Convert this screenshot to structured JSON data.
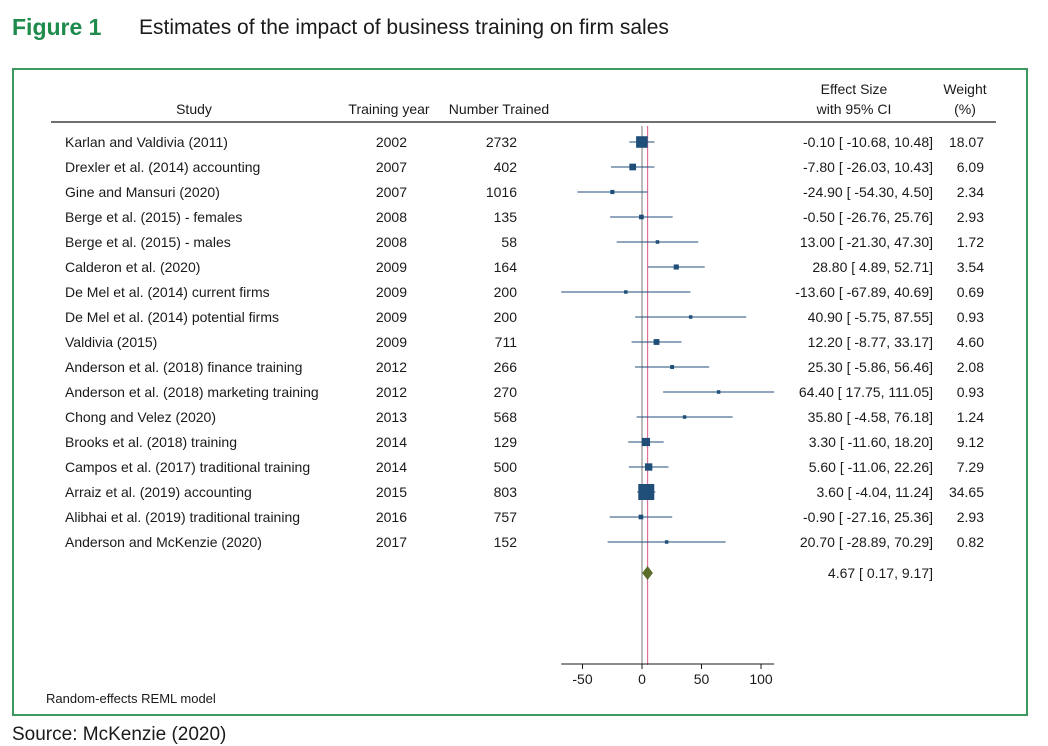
{
  "figure_label": "Figure 1",
  "figure_title": "Estimates of the impact of business training on firm sales",
  "source": "Source: McKenzie (2020)",
  "colors": {
    "accent": "#1e8a4c",
    "border": "#3d9b62",
    "marker": "#1f4e79",
    "overall": "#5a6e2a",
    "refline": "#e0709a"
  },
  "chart_data": {
    "type": "forest",
    "columns": {
      "study": "Study",
      "year": "Training year",
      "trained": "Number Trained",
      "effect_line1": "Effect Size",
      "effect_line2": "with 95% CI",
      "weight_line1": "Weight",
      "weight_line2": "(%)"
    },
    "studies": [
      {
        "study": "Karlan and Valdivia (2011)",
        "year": "2002",
        "trained": "2732",
        "effect": -0.1,
        "lower": -10.68,
        "upper": 10.48,
        "weight": 18.07,
        "ci_text": "-0.10 [ -10.68,   10.48]",
        "weight_text": "18.07"
      },
      {
        "study": "Drexler et al. (2014) accounting",
        "year": "2007",
        "trained": "402",
        "effect": -7.8,
        "lower": -26.03,
        "upper": 10.43,
        "weight": 6.09,
        "ci_text": "-7.80 [ -26.03,   10.43]",
        "weight_text": "6.09"
      },
      {
        "study": "Gine and Mansuri (2020)",
        "year": "2007",
        "trained": "1016",
        "effect": -24.9,
        "lower": -54.3,
        "upper": 4.5,
        "weight": 2.34,
        "ci_text": "-24.90 [ -54.30,     4.50]",
        "weight_text": "2.34"
      },
      {
        "study": "Berge et al. (2015) - females",
        "year": "2008",
        "trained": "135",
        "effect": -0.5,
        "lower": -26.76,
        "upper": 25.76,
        "weight": 2.93,
        "ci_text": "-0.50 [ -26.76,   25.76]",
        "weight_text": "2.93"
      },
      {
        "study": "Berge et al. (2015) - males",
        "year": "2008",
        "trained": "58",
        "effect": 13.0,
        "lower": -21.3,
        "upper": 47.3,
        "weight": 1.72,
        "ci_text": "13.00 [ -21.30,   47.30]",
        "weight_text": "1.72"
      },
      {
        "study": "Calderon et al. (2020)",
        "year": "2009",
        "trained": "164",
        "effect": 28.8,
        "lower": 4.89,
        "upper": 52.71,
        "weight": 3.54,
        "ci_text": "28.80 [     4.89,   52.71]",
        "weight_text": "3.54"
      },
      {
        "study": "De Mel et al. (2014) current firms",
        "year": "2009",
        "trained": "200",
        "effect": -13.6,
        "lower": -67.89,
        "upper": 40.69,
        "weight": 0.69,
        "ci_text": "-13.60 [ -67.89,   40.69]",
        "weight_text": "0.69"
      },
      {
        "study": "De Mel et al. (2014) potential firms",
        "year": "2009",
        "trained": "200",
        "effect": 40.9,
        "lower": -5.75,
        "upper": 87.55,
        "weight": 0.93,
        "ci_text": "40.90 [   -5.75,   87.55]",
        "weight_text": "0.93"
      },
      {
        "study": "Valdivia (2015)",
        "year": "2009",
        "trained": "711",
        "effect": 12.2,
        "lower": -8.77,
        "upper": 33.17,
        "weight": 4.6,
        "ci_text": "12.20 [   -8.77,   33.17]",
        "weight_text": "4.60"
      },
      {
        "study": "Anderson et al. (2018) finance training",
        "year": "2012",
        "trained": "266",
        "effect": 25.3,
        "lower": -5.86,
        "upper": 56.46,
        "weight": 2.08,
        "ci_text": "25.30 [   -5.86,   56.46]",
        "weight_text": "2.08"
      },
      {
        "study": "Anderson et al. (2018) marketing training",
        "year": "2012",
        "trained": "270",
        "effect": 64.4,
        "lower": 17.75,
        "upper": 111.05,
        "weight": 0.93,
        "ci_text": "64.40 [   17.75, 111.05]",
        "weight_text": "0.93"
      },
      {
        "study": "Chong and Velez (2020)",
        "year": "2013",
        "trained": "568",
        "effect": 35.8,
        "lower": -4.58,
        "upper": 76.18,
        "weight": 1.24,
        "ci_text": "35.80 [   -4.58,   76.18]",
        "weight_text": "1.24"
      },
      {
        "study": "Brooks et al. (2018) training",
        "year": "2014",
        "trained": "129",
        "effect": 3.3,
        "lower": -11.6,
        "upper": 18.2,
        "weight": 9.12,
        "ci_text": "3.30 [ -11.60,   18.20]",
        "weight_text": "9.12"
      },
      {
        "study": "Campos et al. (2017) traditional training",
        "year": "2014",
        "trained": "500",
        "effect": 5.6,
        "lower": -11.06,
        "upper": 22.26,
        "weight": 7.29,
        "ci_text": "5.60 [ -11.06,   22.26]",
        "weight_text": "7.29"
      },
      {
        "study": "Arraiz et al. (2019) accounting",
        "year": "2015",
        "trained": "803",
        "effect": 3.6,
        "lower": -4.04,
        "upper": 11.24,
        "weight": 34.65,
        "ci_text": "3.60 [   -4.04,   11.24]",
        "weight_text": "34.65"
      },
      {
        "study": "Alibhai et al. (2019) traditional training",
        "year": "2016",
        "trained": "757",
        "effect": -0.9,
        "lower": -27.16,
        "upper": 25.36,
        "weight": 2.93,
        "ci_text": "-0.90 [ -27.16,   25.36]",
        "weight_text": "2.93"
      },
      {
        "study": "Anderson and McKenzie (2020)",
        "year": "2017",
        "trained": "152",
        "effect": 20.7,
        "lower": -28.89,
        "upper": 70.29,
        "weight": 0.82,
        "ci_text": "20.70 [ -28.89,   70.29]",
        "weight_text": "0.82"
      }
    ],
    "overall": {
      "effect": 4.67,
      "lower": 0.17,
      "upper": 9.17,
      "ci_text": "4.67 [     0.17,     9.17]"
    },
    "x_ticks": [
      -50,
      0,
      50,
      100
    ],
    "x_tick_labels": [
      "-50",
      "0",
      "50",
      "100"
    ],
    "xlim": [
      -67.89,
      111.05
    ],
    "reference_line": 0,
    "footnote": "Random-effects REML model"
  }
}
